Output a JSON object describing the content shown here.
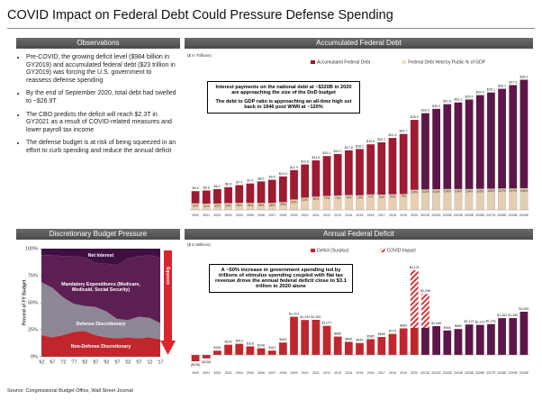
{
  "title": "COVID Impact on Federal Debt Could Pressure Defense Spending",
  "observations": {
    "header": "Observations",
    "bullets": [
      "Pre-COVID, the growing deficit level ($984 billion in GY2019) and accumulated federal debt ($23 trillion in GY2019) was forcing the U.S. government to reassess defense spending",
      "By the end of September 2020, total debt had swelled to ~$26.9T",
      "The CBO predicts the deficit will reach $2.3T in GY2021 as a result of COVID-related measures and lower payroll tax income",
      "The defense budget is at risk of being squeezed in an effort to curb spending and reduce the annual deficit"
    ]
  },
  "source": "Source: Congressional Budget Office, Wall Street Journal",
  "chart_data": [
    {
      "type": "bar",
      "title": "Accumulated Federal Debt",
      "unit_label": "($ in Trillions)",
      "categories": [
        "2000",
        "2001",
        "2002",
        "2003",
        "2004",
        "2005",
        "2006",
        "2007",
        "2008",
        "2009",
        "2010",
        "2011",
        "2012",
        "2013",
        "2014",
        "2015",
        "2016",
        "2017",
        "2018",
        "2019",
        "2020",
        "2021E",
        "2022E",
        "2023E",
        "2024E",
        "2025E",
        "2026E",
        "2027E",
        "2028E",
        "2029E",
        "2030E"
      ],
      "series": [
        {
          "name": "Accumulated Federal Debt",
          "color": "#9e1b32",
          "colors": [
            "#9e1b32",
            "#9e1b32",
            "#9e1b32",
            "#9e1b32",
            "#9e1b32",
            "#9e1b32",
            "#9e1b32",
            "#9e1b32",
            "#9e1b32",
            "#9e1b32",
            "#9e1b32",
            "#9e1b32",
            "#9e1b32",
            "#9e1b32",
            "#9e1b32",
            "#9e1b32",
            "#9e1b32",
            "#9e1b32",
            "#9e1b32",
            "#9e1b32",
            "#9e1b32",
            "#5c1748",
            "#5c1748",
            "#5c1748",
            "#5c1748",
            "#5c1748",
            "#5c1748",
            "#5c1748",
            "#5c1748",
            "#5c1748",
            "#5c1748"
          ],
          "values": [
            5.6,
            5.8,
            6.2,
            6.8,
            7.4,
            7.9,
            8.5,
            9.0,
            10.0,
            11.9,
            13.6,
            14.8,
            16.1,
            16.7,
            17.8,
            18.2,
            19.6,
            20.2,
            21.5,
            22.7,
            26.9,
            28.9,
            30.2,
            31.6,
            32.1,
            33.0,
            34.3,
            35.1,
            36.2,
            37.3,
            38.9
          ],
          "value_labels": [
            "$5.6",
            "$5.8",
            "$6.2",
            "$6.8",
            "$7.4",
            "$7.9",
            "$8.5",
            "$9.0",
            "$10.0",
            "$11.9",
            "$13.6",
            "$14.8",
            "$16.1",
            "$16.7",
            "$17.8",
            "$18.2",
            "$19.6",
            "$20.2",
            "$21.5",
            "$22.7",
            "$26.9",
            "$28.9",
            "$30.2",
            "$31.6",
            "$32.1",
            "$33.0",
            "$34.3",
            "$35.1",
            "$36.2",
            "$37.3",
            "$38.9"
          ]
        },
        {
          "name": "Federal Debt Held by Public % of GDP",
          "color": "#efe3c0",
          "axis": "y2",
          "values": [
            33,
            31,
            32,
            34,
            35,
            35,
            35,
            35,
            39,
            52,
            61,
            66,
            70,
            72,
            74,
            73,
            77,
            76,
            78,
            79,
            100,
            102,
            103,
            104,
            104,
            104,
            105,
            106,
            107,
            107,
            108
          ],
          "value_labels": [
            "33%",
            "31%",
            "32%",
            "34%",
            "35%",
            "35%",
            "35%",
            "35%",
            "39%",
            "52%",
            "61%",
            "66%",
            "70%",
            "72%",
            "74%",
            "73%",
            "77%",
            "76%",
            "78%",
            "79%",
            "100%",
            "102%",
            "103%",
            "104%",
            "104%",
            "104%",
            "105%",
            "106%",
            "107%",
            "107%",
            "108%"
          ]
        }
      ],
      "ylim": [
        0,
        42
      ],
      "y2lim": [
        0,
        700
      ],
      "annotations": [
        "Interest payments on the national debt at ~$320B in 2020 are approaching the size of the DoD budget",
        "The debt to GDP ratio is approaching an all-time high set back in 1946 post WWII at ~120%"
      ]
    },
    {
      "type": "stacked_area",
      "title": "Discretionary Budget Pressure",
      "y_label": "Percent of FY Budget",
      "categories": [
        "'62",
        "'67",
        "'72",
        "'77",
        "'82",
        "'87",
        "'92",
        "'97",
        "'02",
        "'07",
        "'12",
        "'17"
      ],
      "series": [
        {
          "name": "Non-Defense Discretionary",
          "color": "#c0272d",
          "values": [
            20,
            18,
            20,
            23,
            24,
            20,
            18,
            17,
            18,
            17,
            18,
            16
          ]
        },
        {
          "name": "Defense Discretionary",
          "color": "#8d8796",
          "values": [
            49,
            46,
            35,
            26,
            23,
            26,
            24,
            18,
            16,
            20,
            18,
            15
          ]
        },
        {
          "name": "Mandatory Expenditures (Medicare, Medicaid, Social Security)",
          "color": "#5c1f52",
          "values": [
            25,
            30,
            38,
            44,
            45,
            41,
            44,
            50,
            57,
            56,
            58,
            61
          ]
        },
        {
          "name": "Net Interest",
          "color": "#3d1040",
          "values": [
            6,
            6,
            7,
            7,
            8,
            13,
            14,
            15,
            9,
            7,
            6,
            8
          ]
        }
      ],
      "ylim": [
        0,
        100
      ],
      "yticks": [
        {
          "value": 0,
          "label": "0%"
        },
        {
          "value": 25,
          "label": "25%"
        },
        {
          "value": 50,
          "label": "50%"
        },
        {
          "value": 75,
          "label": "75%"
        },
        {
          "value": 100,
          "label": "100%"
        }
      ],
      "annotations": [
        "Squeeze"
      ]
    },
    {
      "type": "stacked_bar",
      "title": "Annual Federal Deficit",
      "unit_label": "($ in Billions)",
      "categories": [
        "2000",
        "2001",
        "2002",
        "2003",
        "2004",
        "2005",
        "2006",
        "2007",
        "2008",
        "2009",
        "2010",
        "2011",
        "2012",
        "2013",
        "2014",
        "2015",
        "2016",
        "2017",
        "2018",
        "2019",
        "2020",
        "2021E",
        "2022E",
        "2023E",
        "2024E",
        "2025E",
        "2026E",
        "2027E",
        "2028E",
        "2029E",
        "2030E"
      ],
      "series": [
        {
          "name": "Deficit (Surplus)",
          "color": "#c0272d",
          "colors": [
            "#c0272d",
            "#c0272d",
            "#c0272d",
            "#c0272d",
            "#c0272d",
            "#c0272d",
            "#c0272d",
            "#c0272d",
            "#c0272d",
            "#c0272d",
            "#c0272d",
            "#c0272d",
            "#c0272d",
            "#c0272d",
            "#c0272d",
            "#c0272d",
            "#c0272d",
            "#c0272d",
            "#c0272d",
            "#c0272d",
            "#c0272d",
            "#5c1748",
            "#5c1748",
            "#5c1748",
            "#5c1748",
            "#5c1748",
            "#5c1748",
            "#5c1748",
            "#5c1748",
            "#5c1748",
            "#5c1748"
          ],
          "values": [
            -236,
            -128,
            158,
            378,
            413,
            318,
            248,
            161,
            459,
            1413,
            1294,
            1300,
            1077,
            680,
            485,
            442,
            585,
            665,
            779,
            984,
            1000,
            1000,
            1066,
            905,
            960,
            1127,
            1112,
            1141,
            1362,
            1365,
            1600
          ],
          "value_labels": [
            "($236)",
            "($128)",
            "$158",
            "$378",
            "$413",
            "$318",
            "$248",
            "$161",
            "$459",
            "$1,413",
            "$1,294",
            "$1,300",
            "$1,077",
            "$680",
            "$485",
            "$442",
            "$585",
            "$665",
            "$779",
            "$984",
            null,
            null,
            "$1,066",
            "$905",
            "$960",
            "$1,127",
            "$1,112",
            "$1,141",
            "$1,362",
            "$1,365",
            "$1,600"
          ]
        },
        {
          "name": "COVID Impact",
          "color": "#d9363e",
          "values": [
            null,
            null,
            null,
            null,
            null,
            null,
            null,
            null,
            null,
            null,
            null,
            null,
            null,
            null,
            null,
            null,
            null,
            null,
            null,
            null,
            2131,
            1258,
            null,
            null,
            null,
            null,
            null,
            null,
            null,
            null,
            null
          ]
        }
      ],
      "ylim": [
        -400,
        3400
      ],
      "annotations": [
        "A ~50% increase in government spending led by trillions of stimulus spending coupled with flat tax revenue drove the annual federal deficit close to $3.1 trillion in 2020 alone",
        "$3,131",
        "$2,258"
      ]
    }
  ]
}
